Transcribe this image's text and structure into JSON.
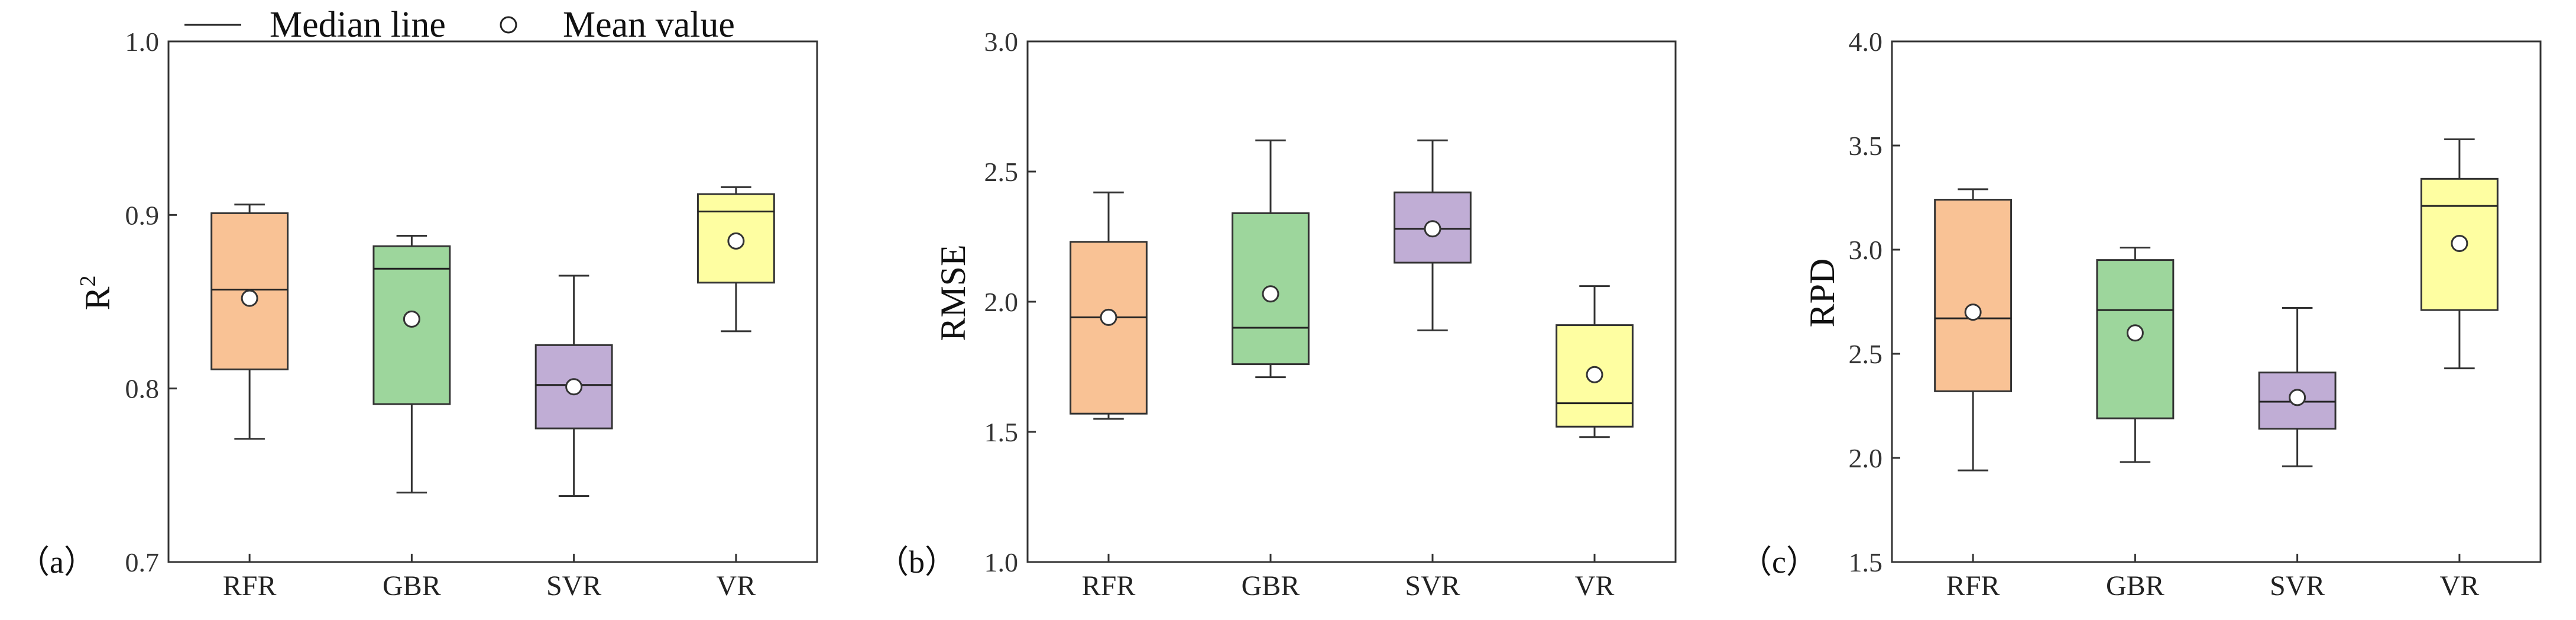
{
  "legend": {
    "median_label": "Median line",
    "mean_label": "Mean value"
  },
  "chart_data": [
    {
      "type": "box",
      "panel_tag": "（a）",
      "ylabel": "R",
      "ylabel_sup": "2",
      "ylim": [
        0.7,
        1.0
      ],
      "yticks": [
        0.7,
        0.8,
        0.9,
        1.0
      ],
      "ytick_labels": [
        "0.7",
        "0.8",
        "0.9",
        "1.0"
      ],
      "categories": [
        "RFR",
        "GBR",
        "SVR",
        "VR"
      ],
      "boxes": [
        {
          "name": "RFR",
          "whisker_low": 0.771,
          "q1": 0.811,
          "median": 0.857,
          "q3": 0.901,
          "whisker_high": 0.906,
          "mean": 0.852,
          "color": "#F9C295"
        },
        {
          "name": "GBR",
          "whisker_low": 0.74,
          "q1": 0.791,
          "median": 0.869,
          "q3": 0.882,
          "whisker_high": 0.888,
          "mean": 0.84,
          "color": "#9DD69C"
        },
        {
          "name": "SVR",
          "whisker_low": 0.738,
          "q1": 0.777,
          "median": 0.802,
          "q3": 0.825,
          "whisker_high": 0.865,
          "mean": 0.801,
          "color": "#C0ADD5"
        },
        {
          "name": "VR",
          "whisker_low": 0.833,
          "q1": 0.861,
          "median": 0.902,
          "q3": 0.912,
          "whisker_high": 0.916,
          "mean": 0.885,
          "color": "#FEFEA1"
        }
      ]
    },
    {
      "type": "box",
      "panel_tag": "（b）",
      "ylabel": "RMSE",
      "ylabel_sup": "",
      "ylim": [
        1.0,
        3.0
      ],
      "yticks": [
        1.0,
        1.5,
        2.0,
        2.5,
        3.0
      ],
      "ytick_labels": [
        "1.0",
        "1.5",
        "2.0",
        "2.5",
        "3.0"
      ],
      "categories": [
        "RFR",
        "GBR",
        "SVR",
        "VR"
      ],
      "boxes": [
        {
          "name": "RFR",
          "whisker_low": 1.55,
          "q1": 1.57,
          "median": 1.94,
          "q3": 2.23,
          "whisker_high": 2.42,
          "mean": 1.94,
          "color": "#F9C295"
        },
        {
          "name": "GBR",
          "whisker_low": 1.71,
          "q1": 1.76,
          "median": 1.9,
          "q3": 2.34,
          "whisker_high": 2.62,
          "mean": 2.03,
          "color": "#9DD69C"
        },
        {
          "name": "SVR",
          "whisker_low": 1.89,
          "q1": 2.15,
          "median": 2.28,
          "q3": 2.42,
          "whisker_high": 2.62,
          "mean": 2.28,
          "color": "#C0ADD5"
        },
        {
          "name": "VR",
          "whisker_low": 1.48,
          "q1": 1.52,
          "median": 1.61,
          "q3": 1.91,
          "whisker_high": 2.06,
          "mean": 1.72,
          "color": "#FEFEA1"
        }
      ]
    },
    {
      "type": "box",
      "panel_tag": "（c）",
      "ylabel": "RPD",
      "ylabel_sup": "",
      "ylim": [
        1.5,
        4.0
      ],
      "yticks": [
        1.5,
        2.0,
        2.5,
        3.0,
        3.5,
        4.0
      ],
      "ytick_labels": [
        "1.5",
        "2.0",
        "2.5",
        "3.0",
        "3.5",
        "4.0"
      ],
      "categories": [
        "RFR",
        "GBR",
        "SVR",
        "VR"
      ],
      "boxes": [
        {
          "name": "RFR",
          "whisker_low": 1.94,
          "q1": 2.32,
          "median": 2.67,
          "q3": 3.24,
          "whisker_high": 3.29,
          "mean": 2.7,
          "color": "#F9C295"
        },
        {
          "name": "GBR",
          "whisker_low": 1.98,
          "q1": 2.19,
          "median": 2.71,
          "q3": 2.95,
          "whisker_high": 3.01,
          "mean": 2.6,
          "color": "#9DD69C"
        },
        {
          "name": "SVR",
          "whisker_low": 1.96,
          "q1": 2.14,
          "median": 2.27,
          "q3": 2.41,
          "whisker_high": 2.72,
          "mean": 2.29,
          "color": "#C0ADD5"
        },
        {
          "name": "VR",
          "whisker_low": 2.43,
          "q1": 2.71,
          "median": 3.21,
          "q3": 3.34,
          "whisker_high": 3.53,
          "mean": 3.03,
          "color": "#FEFEA1"
        }
      ]
    }
  ]
}
